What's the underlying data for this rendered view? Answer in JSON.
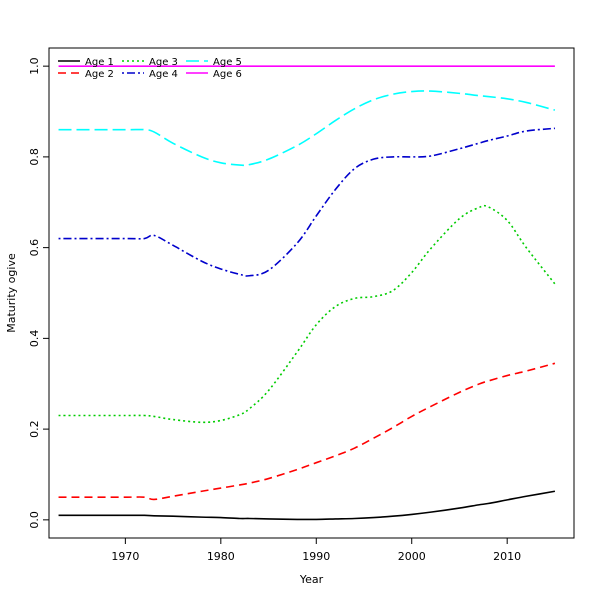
{
  "chart_data": {
    "type": "line",
    "xlabel": "Year",
    "ylabel": "Maturity ogive",
    "xlim": [
      1962,
      2017
    ],
    "ylim": [
      -0.04,
      1.04
    ],
    "xticks": [
      1970,
      1980,
      1990,
      2000,
      2010
    ],
    "yticks": [
      0.0,
      0.2,
      0.4,
      0.6,
      0.8,
      1.0
    ],
    "xtick_labels": [
      "1970",
      "1980",
      "1990",
      "2000",
      "2010"
    ],
    "ytick_labels": [
      "0.0",
      "0.2",
      "0.4",
      "0.6",
      "0.8",
      "1.0"
    ],
    "grid": false,
    "legend_position": "top-left",
    "x": [
      1963,
      1965,
      1970,
      1972,
      1973,
      1975,
      1978,
      1980,
      1982,
      1983,
      1985,
      1988,
      1990,
      1992,
      1994,
      1996,
      1998,
      2000,
      2002,
      2005,
      2007,
      2008,
      2010,
      2012,
      2015
    ],
    "series": [
      {
        "name": "Age 1",
        "color": "#000000",
        "dash": "solid",
        "values": [
          0.01,
          0.01,
          0.01,
          0.01,
          0.009,
          0.008,
          0.006,
          0.005,
          0.003,
          0.003,
          0.002,
          0.001,
          0.001,
          0.002,
          0.003,
          0.005,
          0.008,
          0.012,
          0.017,
          0.026,
          0.033,
          0.036,
          0.044,
          0.052,
          0.063
        ]
      },
      {
        "name": "Age 2",
        "color": "#ff0000",
        "dash": "dashed",
        "values": [
          0.05,
          0.05,
          0.05,
          0.05,
          0.045,
          0.052,
          0.063,
          0.07,
          0.077,
          0.081,
          0.091,
          0.111,
          0.126,
          0.141,
          0.158,
          0.18,
          0.203,
          0.228,
          0.25,
          0.281,
          0.299,
          0.306,
          0.318,
          0.328,
          0.345
        ]
      },
      {
        "name": "Age 3",
        "color": "#00cc00",
        "dash": "dotted",
        "values": [
          0.23,
          0.23,
          0.23,
          0.23,
          0.228,
          0.221,
          0.215,
          0.219,
          0.232,
          0.245,
          0.285,
          0.37,
          0.43,
          0.47,
          0.488,
          0.492,
          0.505,
          0.545,
          0.598,
          0.664,
          0.688,
          0.69,
          0.66,
          0.6,
          0.52
        ]
      },
      {
        "name": "Age 4",
        "color": "#0000cc",
        "dash": "dotdash",
        "values": [
          0.62,
          0.62,
          0.62,
          0.62,
          0.627,
          0.605,
          0.57,
          0.553,
          0.541,
          0.538,
          0.55,
          0.61,
          0.67,
          0.728,
          0.774,
          0.795,
          0.8,
          0.8,
          0.802,
          0.818,
          0.83,
          0.836,
          0.846,
          0.857,
          0.863
        ]
      },
      {
        "name": "Age 5",
        "color": "#00ffff",
        "dash": "longdash",
        "values": [
          0.86,
          0.86,
          0.86,
          0.86,
          0.855,
          0.83,
          0.8,
          0.787,
          0.782,
          0.783,
          0.795,
          0.825,
          0.851,
          0.88,
          0.906,
          0.926,
          0.938,
          0.944,
          0.945,
          0.94,
          0.935,
          0.933,
          0.928,
          0.92,
          0.903
        ]
      },
      {
        "name": "Age 6",
        "color": "#ff00ff",
        "dash": "solid",
        "values": [
          1.0,
          1.0,
          1.0,
          1.0,
          1.0,
          1.0,
          1.0,
          1.0,
          1.0,
          1.0,
          1.0,
          1.0,
          1.0,
          1.0,
          1.0,
          1.0,
          1.0,
          1.0,
          1.0,
          1.0,
          1.0,
          1.0,
          1.0,
          1.0,
          1.0
        ]
      }
    ]
  }
}
